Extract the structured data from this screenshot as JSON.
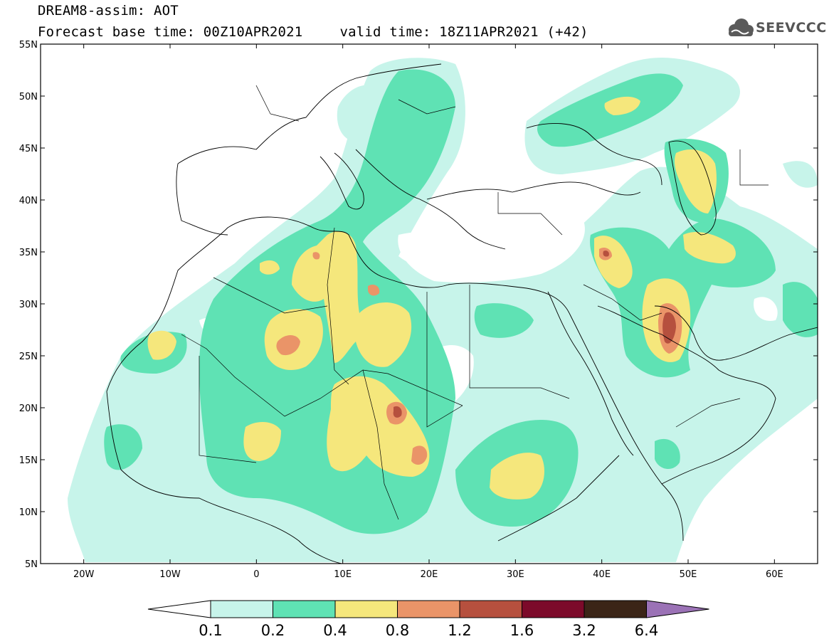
{
  "header": {
    "title": "DREAM8-assim: AOT",
    "base_time": "Forecast base time: 00Z10APR2021",
    "valid_time": "valid time: 18Z11APR2021 (+42)"
  },
  "logo": {
    "text": "SEEVCCC",
    "icon": "cloud-logo-icon",
    "color": "#5a5a5a"
  },
  "map": {
    "lon_range": [
      -25,
      65
    ],
    "lat_range": [
      5,
      55
    ],
    "lat_ticks": [
      "55N",
      "50N",
      "45N",
      "40N",
      "35N",
      "30N",
      "25N",
      "20N",
      "15N",
      "10N",
      "5N"
    ],
    "lon_ticks": [
      "20W",
      "10W",
      "0",
      "10E",
      "20E",
      "30E",
      "40E",
      "50E",
      "60E"
    ]
  },
  "colorbar": {
    "levels": [
      "0.1",
      "0.2",
      "0.4",
      "0.8",
      "1.2",
      "1.6",
      "3.2",
      "6.4"
    ],
    "colors": [
      "#c7f4ea",
      "#5fe2b4",
      "#f5e77c",
      "#ea9468",
      "#b6503e",
      "#7c0a2a",
      "#3b2517",
      "#9b72b6"
    ]
  }
}
